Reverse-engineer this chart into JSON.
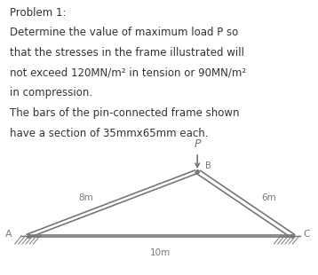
{
  "title_text": "Problem 1:",
  "body_line1": "Determine the value of maximum load P so",
  "body_line2": "that the stresses in the frame illustrated will",
  "body_line3": "not exceed 120MN/m² in tension or 90MN/m²",
  "body_line4": "in compression.",
  "body_line5": "The bars of the pin-connected frame shown",
  "body_line6": "have a section of 35mmx65mm each.",
  "background_color": "#ffffff",
  "text_color": "#333333",
  "diagram_color": "#777777",
  "label_A": "A",
  "label_B": "B",
  "label_C": "C",
  "label_AB": "8m",
  "label_BC": "6m",
  "label_AC": "10m",
  "load_label": "P",
  "text_fontsize": 8.5,
  "title_fontsize": 8.5
}
